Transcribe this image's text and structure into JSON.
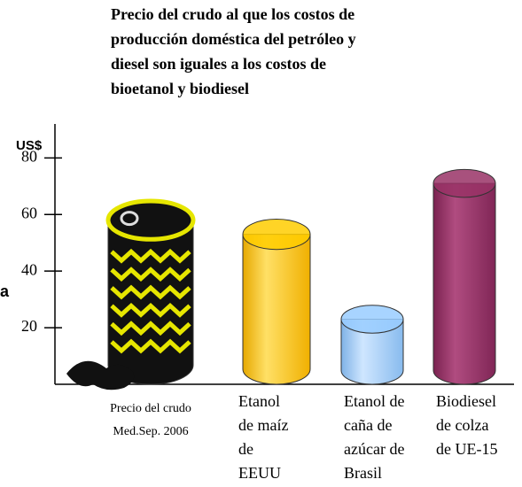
{
  "chart_data": {
    "type": "cylinder-bar",
    "title": [
      "Precio del crudo al que los costos de",
      "producción doméstica del petróleo y",
      "diesel son iguales a los costos de",
      "bioetanol y biodiesel"
    ],
    "y_label": "US$",
    "side_label": "a",
    "categories": [
      [
        "Precio del crudo",
        "Med.Sep. 2006"
      ],
      [
        "Etanol",
        "de maíz",
        "de",
        "EEUU"
      ],
      [
        "Etanol de",
        "caña de",
        "azúcar de",
        "Brasil"
      ],
      [
        "Biodiesel",
        "de colza",
        "de UE-15"
      ]
    ],
    "values": [
      58,
      53,
      23,
      71
    ],
    "colors": [
      "#111111",
      "#ffcc00",
      "#99ccff",
      "#993366"
    ],
    "ylim": [
      0,
      92
    ],
    "yticks": [
      20,
      40,
      60,
      80
    ]
  }
}
